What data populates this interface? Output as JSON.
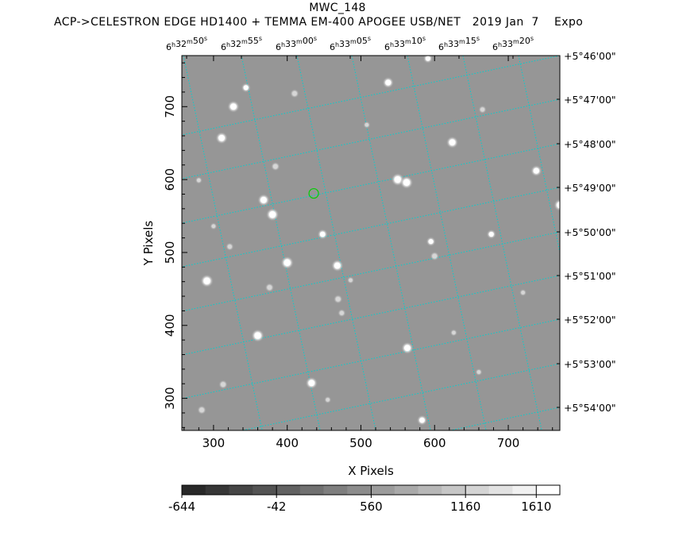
{
  "header": {
    "object_name": "MWC_148",
    "subtitle": "ACP->CELESTRON EDGE HD1400 + TEMMA EM-400 APOGEE USB/NET   2019 Jan  7    Expo"
  },
  "axes": {
    "x_label": "X Pixels",
    "y_label": "Y Pixels",
    "x_ticks": [
      "300",
      "400",
      "500",
      "600",
      "700"
    ],
    "x_tick_values": [
      300,
      400,
      500,
      600,
      700
    ],
    "y_ticks": [
      "300",
      "400",
      "500",
      "600",
      "700"
    ],
    "y_tick_values": [
      300,
      400,
      500,
      600,
      700
    ],
    "x_range": [
      257,
      770
    ],
    "y_range": [
      256,
      770
    ]
  },
  "ra_labels": [
    {
      "h": "6",
      "m": "32",
      "s": "50"
    },
    {
      "h": "6",
      "m": "32",
      "s": "55"
    },
    {
      "h": "6",
      "m": "33",
      "s": "00"
    },
    {
      "h": "6",
      "m": "33",
      "s": "05"
    },
    {
      "h": "6",
      "m": "33",
      "s": "10"
    },
    {
      "h": "6",
      "m": "33",
      "s": "15"
    },
    {
      "h": "6",
      "m": "33",
      "s": "20"
    }
  ],
  "dec_labels": [
    "+5°46'00\"",
    "+5°47'00\"",
    "+5°48'00\"",
    "+5°49'00\"",
    "+5°50'00\"",
    "+5°51'00\"",
    "+5°52'00\"",
    "+5°53'00\"",
    "+5°54'00\""
  ],
  "colorbar": {
    "ticks": [
      "-644",
      "-42",
      "560",
      "1160",
      "1610"
    ],
    "tick_values": [
      -644,
      -42,
      560,
      1160,
      1610
    ],
    "range": [
      -644,
      1760
    ],
    "steps": 16
  },
  "colors": {
    "sky_background": "#969696",
    "grid": "#00d0d0",
    "target_marker": "#00d000",
    "stars": "#ffffff"
  },
  "target": {
    "x": 436,
    "y": 581
  },
  "stars": [
    {
      "x": 291,
      "y": 461,
      "b": 1.0
    },
    {
      "x": 400,
      "y": 486,
      "b": 1.0
    },
    {
      "x": 380,
      "y": 552,
      "b": 1.0
    },
    {
      "x": 327,
      "y": 700,
      "b": 0.9
    },
    {
      "x": 311,
      "y": 657,
      "b": 0.9
    },
    {
      "x": 368,
      "y": 572,
      "b": 0.9
    },
    {
      "x": 550,
      "y": 600,
      "b": 1.0
    },
    {
      "x": 562,
      "y": 596,
      "b": 1.0
    },
    {
      "x": 624,
      "y": 651,
      "b": 0.9
    },
    {
      "x": 537,
      "y": 733,
      "b": 0.8
    },
    {
      "x": 360,
      "y": 386,
      "b": 1.0
    },
    {
      "x": 468,
      "y": 482,
      "b": 0.9
    },
    {
      "x": 563,
      "y": 369,
      "b": 0.9
    },
    {
      "x": 433,
      "y": 321,
      "b": 0.9
    },
    {
      "x": 738,
      "y": 612,
      "b": 0.8
    },
    {
      "x": 770,
      "y": 565,
      "b": 0.9
    },
    {
      "x": 448,
      "y": 525,
      "b": 0.7
    },
    {
      "x": 344,
      "y": 726,
      "b": 0.6
    },
    {
      "x": 410,
      "y": 718,
      "b": 0.5
    },
    {
      "x": 595,
      "y": 515,
      "b": 0.6
    },
    {
      "x": 600,
      "y": 495,
      "b": 0.5
    },
    {
      "x": 677,
      "y": 525,
      "b": 0.6
    },
    {
      "x": 469,
      "y": 436,
      "b": 0.5
    },
    {
      "x": 376,
      "y": 452,
      "b": 0.5
    },
    {
      "x": 384,
      "y": 618,
      "b": 0.5
    },
    {
      "x": 474,
      "y": 417,
      "b": 0.4
    },
    {
      "x": 583,
      "y": 270,
      "b": 0.7
    },
    {
      "x": 591,
      "y": 766,
      "b": 0.6
    },
    {
      "x": 284,
      "y": 284,
      "b": 0.5
    },
    {
      "x": 313,
      "y": 319,
      "b": 0.5
    },
    {
      "x": 665,
      "y": 696,
      "b": 0.4
    },
    {
      "x": 322,
      "y": 508,
      "b": 0.4
    },
    {
      "x": 486,
      "y": 462,
      "b": 0.3
    },
    {
      "x": 508,
      "y": 675,
      "b": 0.3
    },
    {
      "x": 280,
      "y": 599,
      "b": 0.3
    },
    {
      "x": 626,
      "y": 390,
      "b": 0.3
    },
    {
      "x": 720,
      "y": 445,
      "b": 0.3
    },
    {
      "x": 455,
      "y": 298,
      "b": 0.3
    },
    {
      "x": 300,
      "y": 536,
      "b": 0.3
    },
    {
      "x": 660,
      "y": 336,
      "b": 0.3
    }
  ],
  "grid": {
    "pixels_per_arcsec_ra": 0.58,
    "rotation_deg": -12
  }
}
